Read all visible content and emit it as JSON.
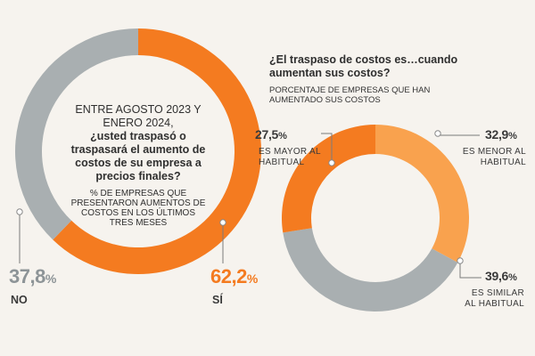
{
  "chart_data": [
    {
      "type": "pie",
      "title": "ENTRE AGOSTO 2023 Y ENERO 2024, ¿usted traspasó o traspasará el aumento de costos de su empresa a precios finales?",
      "title_lead": "ENTRE AGOSTO 2023 Y ENERO 2024,",
      "title_question": "¿usted traspasó o traspasará el aumento de costos de su empresa a precios finales?",
      "subtitle": "% DE EMPRESAS QUE PRESENTARON AUMENTOS DE COSTOS EN LOS ÚLTIMOS TRES MESES",
      "categories": [
        "SÍ",
        "NO"
      ],
      "values": [
        62.2,
        37.8
      ],
      "value_labels": [
        "62,2",
        "37,8"
      ],
      "unit": "%",
      "colors": [
        "#f47b20",
        "#a9afb1"
      ]
    },
    {
      "type": "pie",
      "title": "¿El traspaso de costos es…cuando aumentan sus costos?",
      "subtitle": "PORCENTAJE DE EMPRESAS QUE HAN AUMENTADO SUS COSTOS",
      "categories": [
        "ES MENOR AL HABITUAL",
        "ES SIMILAR AL HABITUAL",
        "ES MAYOR AL HABITUAL"
      ],
      "label_lines": [
        [
          "ES MENOR AL",
          "HABITUAL"
        ],
        [
          "ES SIMILAR",
          "AL HABITUAL"
        ],
        [
          "ES MAYOR AL",
          "HABITUAL"
        ]
      ],
      "values": [
        32.9,
        39.6,
        27.5
      ],
      "value_labels": [
        "32,9",
        "39,6",
        "27,5"
      ],
      "unit": "%",
      "colors": [
        "#f9a24e",
        "#a9afb1",
        "#f47b20"
      ]
    }
  ]
}
